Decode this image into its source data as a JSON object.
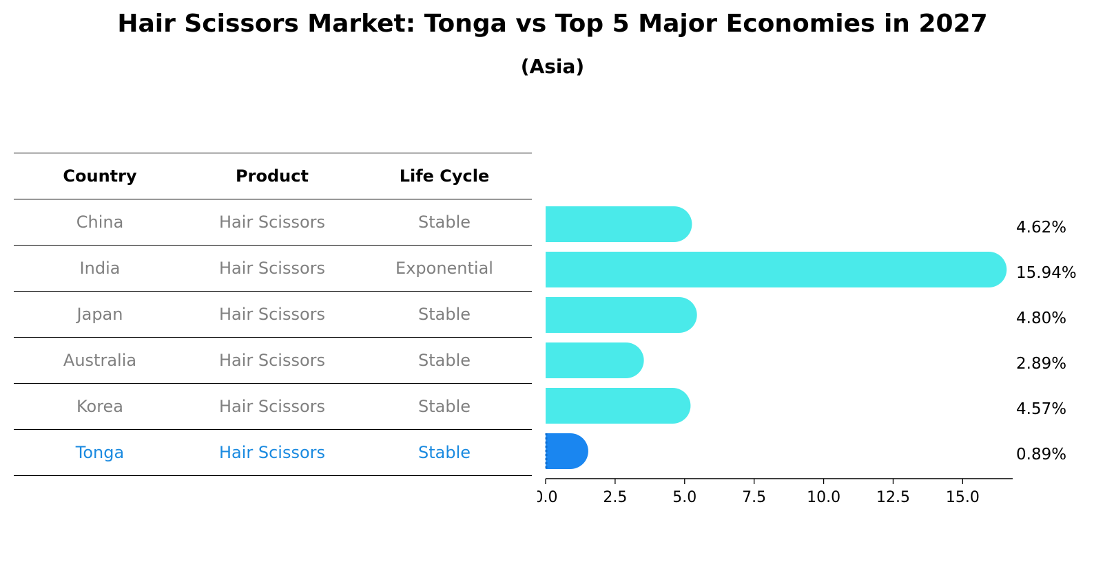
{
  "title": "Hair Scissors Market: Tonga vs Top 5 Major Economies in 2027",
  "subtitle": "(Asia)",
  "table": {
    "headers": [
      "Country",
      "Product",
      "Life Cycle"
    ],
    "rows": [
      {
        "country": "China",
        "product": "Hair Scissors",
        "life_cycle": "Stable"
      },
      {
        "country": "India",
        "product": "Hair Scissors",
        "life_cycle": "Exponential"
      },
      {
        "country": "Japan",
        "product": "Hair Scissors",
        "life_cycle": "Stable"
      },
      {
        "country": "Australia",
        "product": "Hair Scissors",
        "life_cycle": "Stable"
      },
      {
        "country": "Korea",
        "product": "Hair Scissors",
        "life_cycle": "Stable"
      },
      {
        "country": "Tonga",
        "product": "Hair Scissors",
        "life_cycle": "Stable"
      }
    ]
  },
  "chart_data": {
    "type": "bar",
    "orientation": "horizontal",
    "categories": [
      "China",
      "India",
      "Japan",
      "Australia",
      "Korea",
      "Tonga"
    ],
    "values": [
      4.62,
      15.94,
      4.8,
      2.89,
      4.57,
      0.89
    ],
    "value_labels": [
      "4.62%",
      "15.94%",
      "4.80%",
      "2.89%",
      "4.57%",
      "0.89%"
    ],
    "highlight": "Tonga",
    "xlim": [
      0,
      16.8
    ],
    "xticks": [
      0.0,
      2.5,
      5.0,
      7.5,
      10.0,
      12.5,
      15.0
    ],
    "xtick_labels": [
      "0.0",
      "2.5",
      "5.0",
      "7.5",
      "10.0",
      "12.5",
      "15.0"
    ],
    "colors": {
      "default": "#4aeaea",
      "highlight": "#1a86f0"
    }
  }
}
